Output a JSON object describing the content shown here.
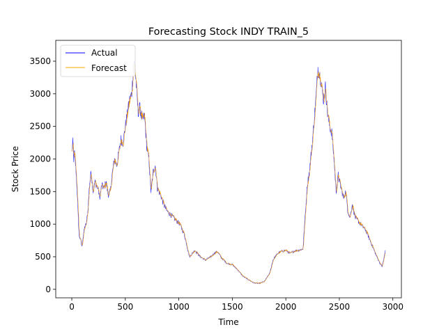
{
  "chart_data": {
    "type": "line",
    "title": "Forecasting Stock INDY TRAIN_5",
    "xlabel": "Time",
    "ylabel": "Stock Price",
    "xlim": [
      -150,
      3080
    ],
    "ylim": [
      -130,
      3820
    ],
    "xticks": [
      0,
      500,
      1000,
      1500,
      2000,
      2500,
      3000
    ],
    "yticks": [
      0,
      500,
      1000,
      1500,
      2000,
      2500,
      3000,
      3500
    ],
    "grid": false,
    "legend": {
      "position": "top-left"
    },
    "colors": {
      "actual": "#0000ff",
      "forecast": "#ffa500"
    },
    "keypoints": {
      "x": [
        0,
        10,
        18,
        25,
        40,
        50,
        60,
        70,
        80,
        95,
        105,
        120,
        135,
        150,
        165,
        180,
        200,
        215,
        230,
        245,
        260,
        280,
        300,
        320,
        340,
        360,
        380,
        400,
        420,
        440,
        460,
        480,
        500,
        520,
        540,
        560,
        580,
        600,
        620,
        630,
        640,
        660,
        680,
        700,
        720,
        740,
        760,
        780,
        800,
        830,
        860,
        890,
        920,
        950,
        980,
        1010,
        1050,
        1100,
        1150,
        1200,
        1250,
        1280,
        1300,
        1330,
        1360,
        1400,
        1450,
        1500,
        1550,
        1600,
        1650,
        1700,
        1750,
        1800,
        1850,
        1880,
        1900,
        1930,
        1960,
        2000,
        2040,
        2080,
        2120,
        2160,
        2200,
        2220,
        2250,
        2280,
        2300,
        2330,
        2350,
        2370,
        2390,
        2410,
        2430,
        2450,
        2470,
        2490,
        2510,
        2540,
        2560,
        2580,
        2600,
        2620,
        2650,
        2700,
        2750,
        2800,
        2850,
        2880,
        2900,
        2920,
        2930
      ],
      "y": [
        2100,
        2250,
        2000,
        2100,
        1800,
        1500,
        1100,
        800,
        780,
        650,
        800,
        950,
        1000,
        1200,
        1600,
        1800,
        1500,
        1650,
        1600,
        1550,
        1400,
        1600,
        1550,
        1650,
        1450,
        1500,
        1800,
        2000,
        1900,
        2100,
        2300,
        2250,
        2500,
        2700,
        2900,
        3000,
        3500,
        3200,
        2700,
        2800,
        2750,
        2600,
        2650,
        2200,
        2000,
        1500,
        1800,
        1900,
        1550,
        1450,
        1300,
        1200,
        1150,
        1100,
        1050,
        1000,
        850,
        500,
        600,
        500,
        450,
        480,
        500,
        550,
        580,
        480,
        400,
        380,
        300,
        200,
        150,
        100,
        90,
        120,
        250,
        450,
        500,
        560,
        580,
        600,
        550,
        590,
        600,
        620,
        1600,
        1800,
        2300,
        2900,
        3400,
        3200,
        2900,
        3100,
        2700,
        2500,
        2400,
        2000,
        1500,
        1750,
        1600,
        1400,
        1500,
        1200,
        1100,
        1300,
        1100,
        1000,
        900,
        700,
        500,
        400,
        350,
        500,
        600
      ]
    },
    "series": [
      {
        "name": "Actual"
      },
      {
        "name": "Forecast"
      }
    ]
  }
}
